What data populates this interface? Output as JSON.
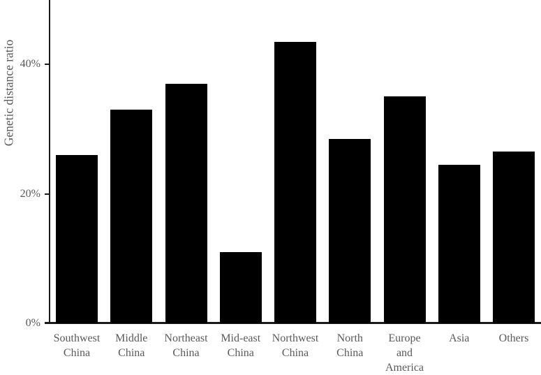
{
  "chart_data": {
    "type": "bar",
    "title": "",
    "xlabel": "",
    "ylabel": "Genetic distance ratio",
    "categories": [
      "Southwest China",
      "Middle China",
      "Northeast China",
      "Mid-east China",
      "Northwest China",
      "North China",
      "Europe and America",
      "Asia",
      "Others"
    ],
    "values": [
      26,
      33,
      37,
      11,
      43.5,
      28.5,
      35,
      24.5,
      26.5
    ],
    "ylim": [
      0,
      50
    ],
    "yticks": [
      {
        "value": 0,
        "label": "0%"
      },
      {
        "value": 20,
        "label": "20%"
      },
      {
        "value": 40,
        "label": "40%"
      }
    ],
    "grid": false,
    "legend": null,
    "bar_color": "#000000",
    "axis_color": "#1a1a1a",
    "text_color": "#595959"
  }
}
